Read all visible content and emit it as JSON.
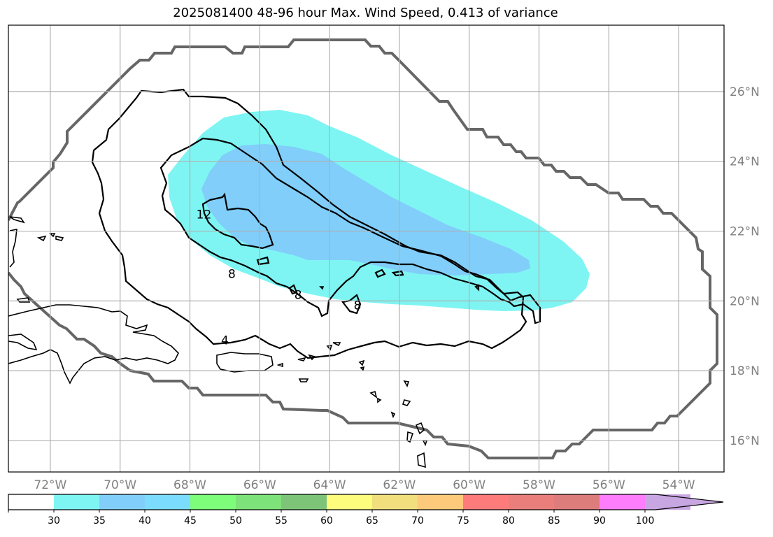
{
  "title": "2025081400 48-96 hour Max. Wind Speed, 0.413 of variance",
  "map": {
    "lon_range": [
      -73.2,
      -52.7
    ],
    "lat_range": [
      15.1,
      27.9
    ],
    "lon_ticks": [
      {
        "value": -72,
        "label": "72°W"
      },
      {
        "value": -70,
        "label": "70°W"
      },
      {
        "value": -68,
        "label": "68°W"
      },
      {
        "value": -66,
        "label": "66°W"
      },
      {
        "value": -64,
        "label": "64°W"
      },
      {
        "value": -62,
        "label": "62°W"
      },
      {
        "value": -60,
        "label": "60°W"
      },
      {
        "value": -58,
        "label": "58°W"
      },
      {
        "value": -56,
        "label": "56°W"
      },
      {
        "value": -54,
        "label": "54°W"
      }
    ],
    "lat_ticks": [
      {
        "value": 16,
        "label": "16°N"
      },
      {
        "value": 18,
        "label": "18°N"
      },
      {
        "value": 20,
        "label": "20°N"
      },
      {
        "value": 22,
        "label": "22°N"
      },
      {
        "value": 24,
        "label": "24°N"
      },
      {
        "value": 26,
        "label": "26°N"
      }
    ],
    "grid": true,
    "contour_labels": [
      {
        "text": "12",
        "lon": -67.6,
        "lat": 22.4
      },
      {
        "text": "8",
        "lon": -66.8,
        "lat": 20.7
      },
      {
        "text": "8",
        "lon": -64.9,
        "lat": 20.1
      },
      {
        "text": "8",
        "lon": -63.2,
        "lat": 19.8
      },
      {
        "text": "4",
        "lon": -67.0,
        "lat": 18.8
      }
    ],
    "shaded_levels": {
      "30-35": "#7ef5f2",
      "35-40": "#81cefa"
    },
    "colors": {
      "domain_outline": "#666666",
      "contour": "#000000",
      "coast": "#000000",
      "grid": "#b0b0b0"
    }
  },
  "colorbar": {
    "labels": [
      "30",
      "35",
      "40",
      "45",
      "50",
      "55",
      "60",
      "65",
      "70",
      "75",
      "80",
      "85",
      "90",
      "100"
    ],
    "segments": [
      {
        "color": "#ffffff"
      },
      {
        "color": "#7ef5f2"
      },
      {
        "color": "#81cefa"
      },
      {
        "color": "#7bdcfd"
      },
      {
        "color": "#7dfd7a"
      },
      {
        "color": "#7ee27a"
      },
      {
        "color": "#7dc479"
      },
      {
        "color": "#fdfc7d"
      },
      {
        "color": "#f1df7d"
      },
      {
        "color": "#fdc97b"
      },
      {
        "color": "#fd7c7b"
      },
      {
        "color": "#ea7e7b"
      },
      {
        "color": "#dc7c7b"
      },
      {
        "color": "#fd7dfd"
      },
      {
        "color": "#c8a6e2"
      }
    ]
  }
}
